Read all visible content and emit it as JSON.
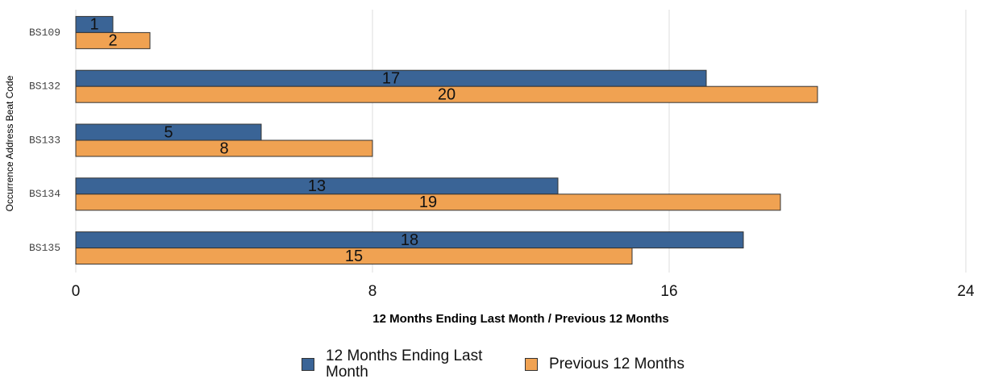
{
  "chart_data": {
    "type": "bar",
    "orientation": "horizontal",
    "categories": [
      "BS109",
      "BS132",
      "BS133",
      "BS134",
      "BS135"
    ],
    "series": [
      {
        "name": "12 Months Ending Last Month",
        "color": "#3a6496",
        "values": [
          1,
          17,
          5,
          13,
          18
        ]
      },
      {
        "name": "Previous 12 Months",
        "color": "#f0a252",
        "values": [
          2,
          20,
          8,
          19,
          15
        ]
      }
    ],
    "xlabel": "12 Months Ending Last Month / Previous 12 Months",
    "ylabel": "Occurrence Address Beat Code",
    "xlim": [
      0,
      24
    ],
    "xticks": [
      0,
      8,
      16,
      24
    ],
    "grid": true,
    "legend": "bottom"
  }
}
